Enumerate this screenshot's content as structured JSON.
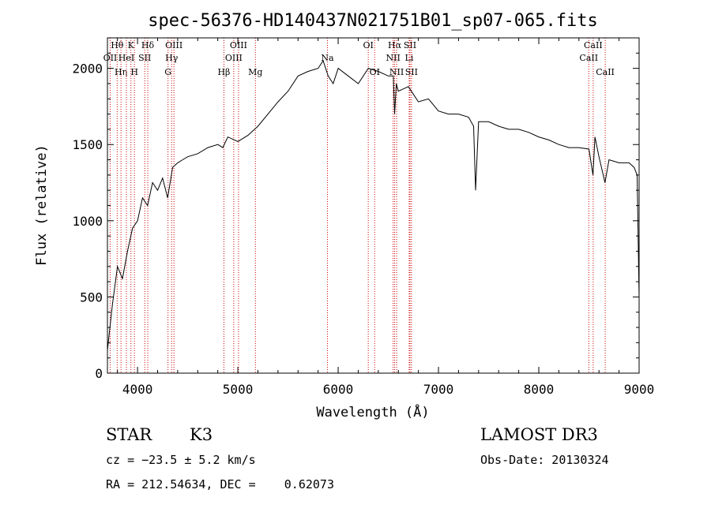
{
  "chart_data": {
    "type": "line",
    "title": "spec-56376-HD140437N021751B01_sp07-065.fits",
    "xlabel": "Wavelength (Å)",
    "ylabel": "Flux (relative)",
    "xlim": [
      3700,
      9000
    ],
    "ylim": [
      0,
      2200
    ],
    "x_ticks": [
      4000,
      5000,
      6000,
      7000,
      8000,
      9000
    ],
    "y_ticks": [
      0,
      500,
      1000,
      1500,
      2000
    ],
    "grid": false,
    "series": [
      {
        "x": [
          3700,
          3750,
          3800,
          3850,
          3900,
          3950,
          4000,
          4050,
          4100,
          4150,
          4200,
          4250,
          4300,
          4350,
          4400,
          4450,
          4500,
          4600,
          4700,
          4800,
          4850,
          4900,
          5000,
          5100,
          5200,
          5300,
          5400,
          5500,
          5600,
          5700,
          5800,
          5850,
          5900,
          5950,
          6000,
          6100,
          6200,
          6300,
          6400,
          6500,
          6550,
          6563,
          6580,
          6600,
          6700,
          6800,
          6900,
          7000,
          7100,
          7200,
          7300,
          7350,
          7370,
          7400,
          7500,
          7600,
          7700,
          7800,
          7900,
          8000,
          8100,
          8200,
          8300,
          8400,
          8500,
          8540,
          8560,
          8600,
          8660,
          8700,
          8800,
          8900,
          8950,
          8980,
          9000
        ],
        "y": [
          150,
          450,
          700,
          620,
          800,
          950,
          1000,
          1150,
          1100,
          1250,
          1200,
          1280,
          1150,
          1350,
          1380,
          1400,
          1420,
          1440,
          1480,
          1500,
          1480,
          1550,
          1520,
          1560,
          1620,
          1700,
          1780,
          1850,
          1950,
          1980,
          2000,
          2050,
          1950,
          1900,
          2000,
          1950,
          1900,
          2000,
          1980,
          1950,
          1950,
          1700,
          1900,
          1850,
          1880,
          1780,
          1800,
          1720,
          1700,
          1700,
          1680,
          1620,
          1200,
          1650,
          1650,
          1620,
          1600,
          1600,
          1580,
          1550,
          1530,
          1500,
          1480,
          1480,
          1470,
          1300,
          1550,
          1420,
          1250,
          1400,
          1380,
          1380,
          1350,
          1300,
          500
        ]
      }
    ],
    "annotations": [
      {
        "label": "Hθ",
        "x": 3797,
        "row": 1,
        "color": "#cc0000"
      },
      {
        "label": "OII",
        "x": 3727,
        "row": 2,
        "color": "#cc0000"
      },
      {
        "label": "Hη",
        "x": 3835,
        "row": 3,
        "color": "#cc0000"
      },
      {
        "label": "K",
        "x": 3934,
        "row": 1,
        "color": "#cc0000"
      },
      {
        "label": "HeI",
        "x": 3889,
        "row": 2,
        "color": "#cc0000"
      },
      {
        "label": "H",
        "x": 3969,
        "row": 3,
        "color": "#cc0000"
      },
      {
        "label": "SII",
        "x": 4072,
        "row": 2,
        "color": "#cc0000"
      },
      {
        "label": "Hδ",
        "x": 4102,
        "row": 1,
        "color": "#cc0000"
      },
      {
        "label": "OIII",
        "x": 4363,
        "row": 1,
        "color": "#cc0000"
      },
      {
        "label": "Hγ",
        "x": 4340,
        "row": 2,
        "color": "#cc0000"
      },
      {
        "label": "G",
        "x": 4304,
        "row": 3,
        "color": "#cc0000"
      },
      {
        "label": "Hβ",
        "x": 4861,
        "row": 3,
        "color": "#cc0000"
      },
      {
        "label": "OIII",
        "x": 4959,
        "row": 2,
        "color": "#cc0000"
      },
      {
        "label": "OIII",
        "x": 5007,
        "row": 1,
        "color": "#cc0000"
      },
      {
        "label": "Mg",
        "x": 5175,
        "row": 3,
        "color": "#cc0000"
      },
      {
        "label": "Na",
        "x": 5893,
        "row": 2,
        "color": "#cc0000"
      },
      {
        "label": "OI",
        "x": 6300,
        "row": 1,
        "color": "#cc0000"
      },
      {
        "label": "OI",
        "x": 6364,
        "row": 3,
        "color": "#cc0000"
      },
      {
        "label": "Hα",
        "x": 6563,
        "row": 1,
        "color": "#cc0000"
      },
      {
        "label": "NII",
        "x": 6548,
        "row": 2,
        "color": "#cc0000"
      },
      {
        "label": "NII",
        "x": 6583,
        "row": 3,
        "color": "#cc0000"
      },
      {
        "label": "SII",
        "x": 6716,
        "row": 1,
        "color": "#cc0000"
      },
      {
        "label": "Li",
        "x": 6708,
        "row": 2,
        "color": "#cc0000"
      },
      {
        "label": "SII",
        "x": 6731,
        "row": 3,
        "color": "#cc0000"
      },
      {
        "label": "CaII",
        "x": 8542,
        "row": 1,
        "color": "#cc0000"
      },
      {
        "label": "CaII",
        "x": 8498,
        "row": 2,
        "color": "#cc0000"
      },
      {
        "label": "CaII",
        "x": 8662,
        "row": 3,
        "color": "#cc0000"
      }
    ]
  },
  "info": {
    "class": "STAR",
    "subclass": "K3",
    "survey": "LAMOST DR3",
    "redshift": "cz = −23.5 ± 5.2 km/s",
    "obs_date": "Obs-Date: 20130324",
    "coords": "RA = 212.54634, DEC =    0.62073"
  }
}
